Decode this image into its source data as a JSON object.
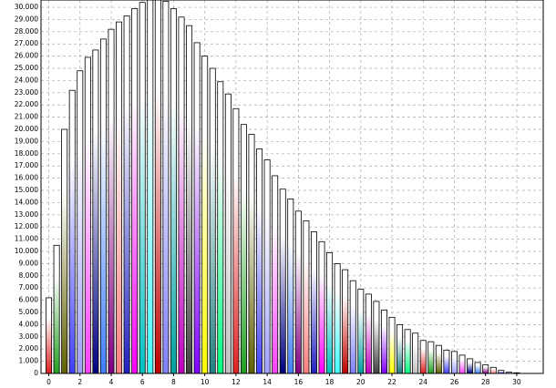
{
  "chart_data": {
    "type": "bar",
    "x": [
      0,
      0.5,
      1,
      1.5,
      2,
      2.5,
      3,
      3.5,
      4,
      4.5,
      5,
      5.5,
      6,
      6.5,
      7,
      7.5,
      8,
      8.5,
      9,
      9.5,
      10,
      10.5,
      11,
      11.5,
      12,
      12.5,
      13,
      13.5,
      14,
      14.5,
      15,
      15.5,
      16,
      16.5,
      17,
      17.5,
      18,
      18.5,
      19,
      19.5,
      20,
      20.5,
      21,
      21.5,
      22,
      22.5,
      23,
      23.5,
      24,
      24.5,
      25,
      25.5,
      26,
      26.5,
      27,
      27.5,
      28,
      28.5,
      29,
      29.5,
      30
    ],
    "values": [
      6200,
      10500,
      20000,
      23200,
      24800,
      25900,
      26500,
      27400,
      28200,
      28800,
      29300,
      29900,
      30400,
      30800,
      31000,
      30500,
      29900,
      29200,
      28500,
      27100,
      26000,
      25000,
      23900,
      22900,
      21700,
      20400,
      19600,
      18400,
      17500,
      16200,
      15100,
      14300,
      13300,
      12500,
      11600,
      10800,
      9900,
      9000,
      8500,
      7600,
      6900,
      6500,
      5900,
      5200,
      4600,
      4000,
      3600,
      3300,
      2700,
      2600,
      2300,
      1900,
      1800,
      1500,
      1200,
      900,
      700,
      500,
      250,
      100,
      50
    ],
    "colors": [
      "#e02020",
      "#20a020",
      "#606000",
      "#4040ff",
      "#a0a0ff",
      "#ff40ff",
      "#000080",
      "#4080ff",
      "#800080",
      "#ff8080",
      "#2020c0",
      "#ff00ff",
      "#00c0c0",
      "#40ffff",
      "#c00000",
      "#8080ff",
      "#00a0a0",
      "#c000c0",
      "#404040",
      "#8000ff",
      "#ffff00",
      "#208080",
      "#00ff80",
      "#c0c0c0"
    ],
    "xlim": [
      -0.5,
      31.7
    ],
    "ylim": [
      0,
      30600
    ],
    "xticks": [
      0,
      2,
      4,
      6,
      8,
      10,
      12,
      14,
      16,
      18,
      20,
      22,
      24,
      26,
      28,
      30
    ],
    "yticks": [
      0,
      {
        "value": 1000,
        "label": "1.000"
      },
      {
        "value": 2000,
        "label": "2.000"
      },
      {
        "value": 3000,
        "label": "3.000"
      },
      {
        "value": 4000,
        "label": "4.000"
      },
      {
        "value": 5000,
        "label": "5.000"
      },
      {
        "value": 6000,
        "label": "6.000"
      },
      {
        "value": 7000,
        "label": "7.000"
      },
      {
        "value": 8000,
        "label": "8.000"
      },
      {
        "value": 9000,
        "label": "9.000"
      },
      {
        "value": 10000,
        "label": "10.000"
      },
      {
        "value": 11000,
        "label": "11.000"
      },
      {
        "value": 12000,
        "label": "12.000"
      },
      {
        "value": 13000,
        "label": "13.000"
      },
      {
        "value": 14000,
        "label": "14.000"
      },
      {
        "value": 15000,
        "label": "15.000"
      },
      {
        "value": 16000,
        "label": "16.000"
      },
      {
        "value": 17000,
        "label": "17.000"
      },
      {
        "value": 18000,
        "label": "18.000"
      },
      {
        "value": 19000,
        "label": "19.000"
      },
      {
        "value": 20000,
        "label": "20.000"
      },
      {
        "value": 21000,
        "label": "21.000"
      },
      {
        "value": 22000,
        "label": "22.000"
      },
      {
        "value": 23000,
        "label": "23.000"
      },
      {
        "value": 24000,
        "label": "24.000"
      },
      {
        "value": 25000,
        "label": "25.000"
      },
      {
        "value": 26000,
        "label": "26.000"
      },
      {
        "value": 27000,
        "label": "27.000"
      },
      {
        "value": 28000,
        "label": "28.000"
      },
      {
        "value": 29000,
        "label": "29.000"
      },
      {
        "value": 30000,
        "label": "30.000"
      }
    ],
    "grid": true
  }
}
